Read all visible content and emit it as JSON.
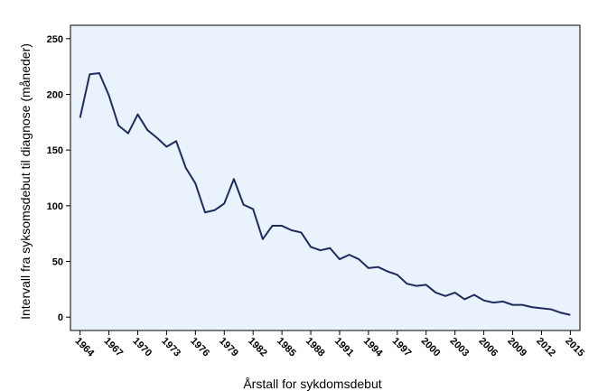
{
  "chart_data": {
    "type": "line",
    "xlabel": "Årstall for sykdomsdebut",
    "ylabel": "Intervall fra syksomsdebut til diagnose (måneder)",
    "xlim": [
      1963,
      2016
    ],
    "ylim": [
      -12,
      262
    ],
    "x_ticks": [
      "1964",
      "1967",
      "1970",
      "1973",
      "1976",
      "1979",
      "1982",
      "1985",
      "1988",
      "1991",
      "1994",
      "1997",
      "2000",
      "2003",
      "2006",
      "2009",
      "2012",
      "2015"
    ],
    "y_ticks": [
      0,
      50,
      100,
      150,
      200,
      250
    ],
    "grid": false,
    "line_color": "#1f2a5e",
    "plot_background": "#eaf2fc",
    "series": [
      {
        "x": [
          1964,
          1965,
          1966,
          1967,
          1968,
          1969,
          1970,
          1971,
          1972,
          1973,
          1974,
          1975,
          1976,
          1977,
          1978,
          1979,
          1980,
          1981,
          1982,
          1983,
          1984,
          1985,
          1986,
          1987,
          1988,
          1989,
          1990,
          1991,
          1992,
          1993,
          1994,
          1995,
          1996,
          1997,
          1998,
          1999,
          2000,
          2001,
          2002,
          2003,
          2004,
          2005,
          2006,
          2007,
          2008,
          2009,
          2010,
          2011,
          2012,
          2013,
          2014,
          2015
        ],
        "values": [
          179,
          218,
          219,
          199,
          172,
          165,
          182,
          168,
          161,
          153,
          158,
          134,
          120,
          94,
          96,
          102,
          124,
          101,
          97,
          70,
          82,
          82,
          78,
          76,
          63,
          60,
          62,
          52,
          56,
          52,
          44,
          45,
          41,
          38,
          30,
          28,
          29,
          22,
          19,
          22,
          16,
          20,
          15,
          13,
          14,
          11,
          11,
          9,
          8,
          7,
          4,
          2
        ]
      }
    ]
  }
}
